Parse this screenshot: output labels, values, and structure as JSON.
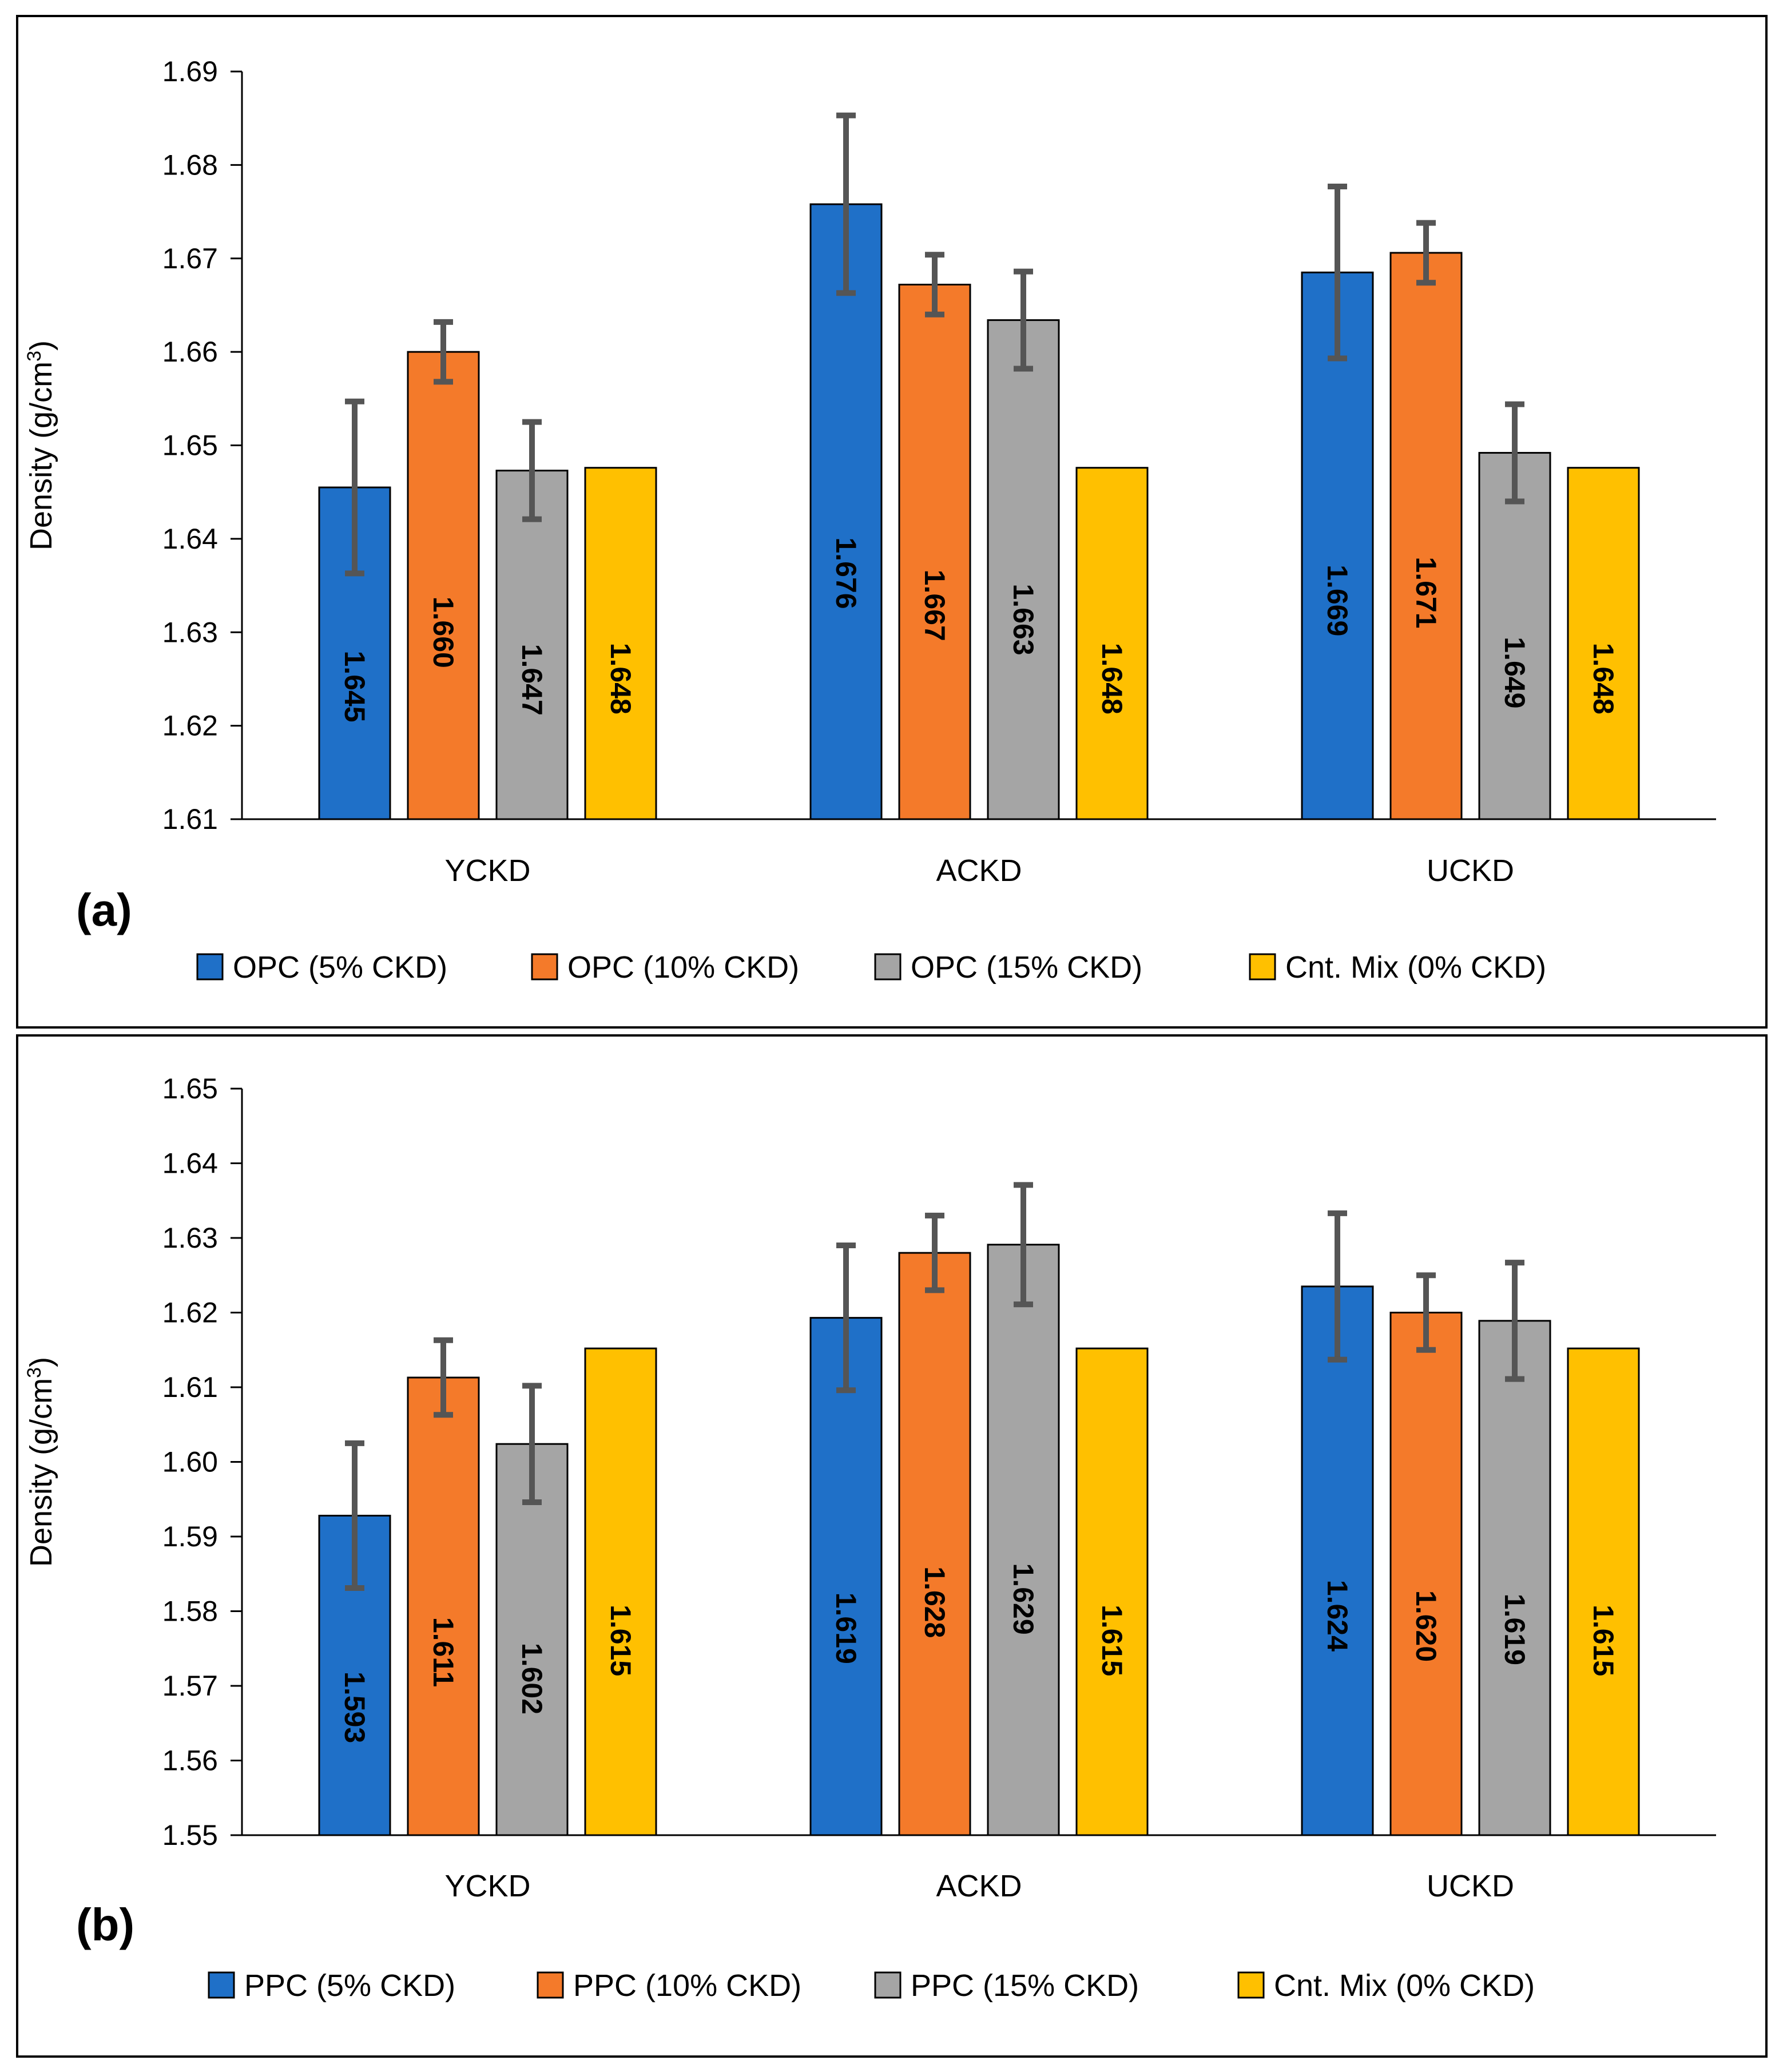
{
  "chart_data": [
    {
      "type": "bar",
      "panel_label": "(a)",
      "categories": [
        "YCKD",
        "ACKD",
        "UCKD"
      ],
      "ylabel": "Density (g/cm",
      "ylabel_sup": "3",
      "ylabel_close": ")",
      "ylim": [
        1.61,
        1.69
      ],
      "yticks": [
        "1.61",
        "1.62",
        "1.63",
        "1.64",
        "1.65",
        "1.66",
        "1.67",
        "1.68",
        "1.69"
      ],
      "series": [
        {
          "name": "OPC (5% CKD)",
          "color": "#1f70c8",
          "values": [
            1.6455,
            1.6758,
            1.6685
          ],
          "errors": [
            0.0092,
            0.0095,
            0.0092
          ],
          "labels": [
            "1.645",
            "1.676",
            "1.669"
          ]
        },
        {
          "name": "OPC (10% CKD)",
          "color": "#f47a2a",
          "values": [
            1.66,
            1.6672,
            1.6706
          ],
          "errors": [
            0.0032,
            0.0032,
            0.0032
          ],
          "labels": [
            "1.660",
            "1.667",
            "1.671"
          ]
        },
        {
          "name": "OPC (15% CKD)",
          "color": "#a5a5a5",
          "values": [
            1.6473,
            1.6634,
            1.6492
          ],
          "errors": [
            0.0052,
            0.0052,
            0.0052
          ],
          "labels": [
            "1.647",
            "1.663",
            "1.649"
          ]
        },
        {
          "name": "Cnt. Mix (0% CKD)",
          "color": "#ffc000",
          "values": [
            1.6476,
            1.6476,
            1.6476
          ],
          "errors": [
            0,
            0,
            0
          ],
          "labels": [
            "1.648",
            "1.648",
            "1.648"
          ]
        }
      ]
    },
    {
      "type": "bar",
      "panel_label": "(b)",
      "categories": [
        "YCKD",
        "ACKD",
        "UCKD"
      ],
      "ylabel": "Density (g/cm",
      "ylabel_sup": "3",
      "ylabel_close": ")",
      "ylim": [
        1.55,
        1.65
      ],
      "yticks": [
        "1.55",
        "1.56",
        "1.57",
        "1.58",
        "1.59",
        "1.60",
        "1.61",
        "1.62",
        "1.63",
        "1.64",
        "1.65"
      ],
      "series": [
        {
          "name": "PPC (5% CKD)",
          "color": "#1f70c8",
          "values": [
            1.5928,
            1.6193,
            1.6235
          ],
          "errors": [
            0.0097,
            0.0097,
            0.0098
          ],
          "labels": [
            "1.593",
            "1.619",
            "1.624"
          ]
        },
        {
          "name": "PPC (10% CKD)",
          "color": "#f47a2a",
          "values": [
            1.6113,
            1.628,
            1.62
          ],
          "errors": [
            0.005,
            0.005,
            0.005
          ],
          "labels": [
            "1.611",
            "1.628",
            "1.620"
          ]
        },
        {
          "name": "PPC (15% CKD)",
          "color": "#a5a5a5",
          "values": [
            1.6024,
            1.6291,
            1.6189
          ],
          "errors": [
            0.0078,
            0.008,
            0.0078
          ],
          "labels": [
            "1.602",
            "1.629",
            "1.619"
          ]
        },
        {
          "name": "Cnt. Mix (0% CKD)",
          "color": "#ffc000",
          "values": [
            1.6152,
            1.6152,
            1.6152
          ],
          "errors": [
            0,
            0,
            0
          ],
          "labels": [
            "1.615",
            "1.615",
            "1.615"
          ]
        }
      ]
    }
  ]
}
